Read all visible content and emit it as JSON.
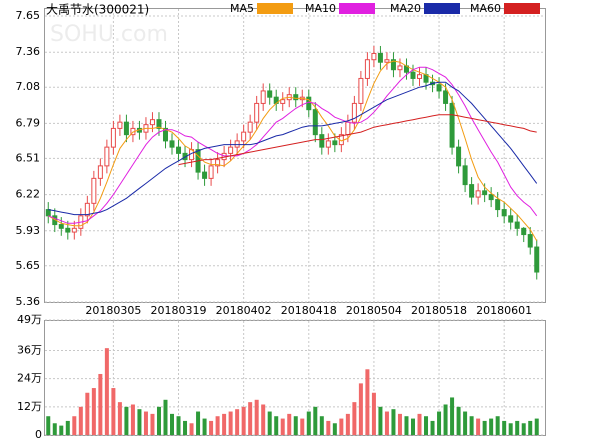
{
  "chart_data": {
    "type": "candlestick",
    "title": "大禹节水(300021)",
    "watermark": "SOHU.com",
    "up_color": "#e84a4a",
    "down_color": "#2e9a3a",
    "grid": true,
    "categories": [
      null,
      null,
      null,
      null,
      null,
      null,
      null,
      null,
      null,
      null,
      "20180305",
      null,
      null,
      null,
      null,
      null,
      null,
      null,
      null,
      null,
      "20180319",
      null,
      null,
      null,
      null,
      null,
      null,
      null,
      null,
      null,
      "20180402",
      null,
      null,
      null,
      null,
      null,
      null,
      null,
      null,
      null,
      "20180418",
      null,
      null,
      null,
      null,
      null,
      null,
      null,
      null,
      null,
      "20180504",
      null,
      null,
      null,
      null,
      null,
      null,
      null,
      null,
      null,
      "20180518",
      null,
      null,
      null,
      null,
      null,
      null,
      null,
      null,
      null,
      "20180601",
      null,
      null,
      null,
      null,
      null
    ],
    "open": [
      6.1,
      6.05,
      5.98,
      5.95,
      5.92,
      5.95,
      6.05,
      6.15,
      6.35,
      6.45,
      6.6,
      6.75,
      6.8,
      6.7,
      6.75,
      6.72,
      6.78,
      6.82,
      6.75,
      6.65,
      6.6,
      6.55,
      6.5,
      6.58,
      6.4,
      6.35,
      6.45,
      6.5,
      6.55,
      6.6,
      6.65,
      6.72,
      6.8,
      6.95,
      7.05,
      7.0,
      6.95,
      6.98,
      7.02,
      6.98,
      7.0,
      6.9,
      6.7,
      6.6,
      6.65,
      6.62,
      6.7,
      6.8,
      6.95,
      7.15,
      7.3,
      7.35,
      7.28,
      7.3,
      7.22,
      7.25,
      7.2,
      7.15,
      7.18,
      7.12,
      7.1,
      7.05,
      6.95,
      6.6,
      6.45,
      6.3,
      6.2,
      6.25,
      6.22,
      6.18,
      6.1,
      6.05,
      6.0,
      5.95,
      5.9,
      5.8
    ],
    "high": [
      6.16,
      6.11,
      6.04,
      6.01,
      6.01,
      6.11,
      6.21,
      6.41,
      6.51,
      6.66,
      6.81,
      6.86,
      6.86,
      6.81,
      6.81,
      6.84,
      6.88,
      6.88,
      6.81,
      6.71,
      6.66,
      6.61,
      6.64,
      6.64,
      6.46,
      6.51,
      6.56,
      6.61,
      6.66,
      6.71,
      6.78,
      6.86,
      7.01,
      7.11,
      7.11,
      7.06,
      7.04,
      7.08,
      7.08,
      7.06,
      7.06,
      6.96,
      6.76,
      6.71,
      6.71,
      6.76,
      6.86,
      7.01,
      7.21,
      7.36,
      7.41,
      7.41,
      7.36,
      7.36,
      7.31,
      7.31,
      7.26,
      7.24,
      7.24,
      7.18,
      7.16,
      7.11,
      7.01,
      6.66,
      6.51,
      6.36,
      6.31,
      6.31,
      6.28,
      6.24,
      6.16,
      6.11,
      6.06,
      5.96,
      5.96,
      5.86
    ],
    "low": [
      5.99,
      5.92,
      5.89,
      5.86,
      5.86,
      5.89,
      5.99,
      6.09,
      6.29,
      6.39,
      6.54,
      6.69,
      6.64,
      6.64,
      6.66,
      6.66,
      6.72,
      6.69,
      6.59,
      6.54,
      6.49,
      6.44,
      6.44,
      6.34,
      6.29,
      6.29,
      6.39,
      6.44,
      6.49,
      6.54,
      6.59,
      6.66,
      6.74,
      6.89,
      6.94,
      6.89,
      6.89,
      6.92,
      6.92,
      6.92,
      6.84,
      6.64,
      6.54,
      6.54,
      6.56,
      6.56,
      6.64,
      6.74,
      6.89,
      7.09,
      7.24,
      7.22,
      7.22,
      7.16,
      7.16,
      7.14,
      7.09,
      7.09,
      7.06,
      7.04,
      6.99,
      6.89,
      6.54,
      6.39,
      6.24,
      6.14,
      6.14,
      6.16,
      6.12,
      6.04,
      5.99,
      5.94,
      5.89,
      5.84,
      5.74,
      5.54
    ],
    "close": [
      6.05,
      5.98,
      5.95,
      5.92,
      5.95,
      6.05,
      6.15,
      6.35,
      6.45,
      6.6,
      6.75,
      6.8,
      6.7,
      6.75,
      6.72,
      6.78,
      6.82,
      6.75,
      6.65,
      6.6,
      6.55,
      6.5,
      6.58,
      6.4,
      6.35,
      6.45,
      6.5,
      6.55,
      6.6,
      6.65,
      6.72,
      6.8,
      6.95,
      7.05,
      7.0,
      6.95,
      6.98,
      7.02,
      6.98,
      7.0,
      6.9,
      6.7,
      6.6,
      6.65,
      6.62,
      6.7,
      6.8,
      6.95,
      7.15,
      7.3,
      7.35,
      7.28,
      7.3,
      7.22,
      7.25,
      7.2,
      7.15,
      7.18,
      7.12,
      7.1,
      7.05,
      6.95,
      6.6,
      6.45,
      6.3,
      6.2,
      6.25,
      6.22,
      6.18,
      6.1,
      6.05,
      6.0,
      5.95,
      5.9,
      5.8,
      5.6
    ],
    "volume": [
      8,
      5,
      4,
      6,
      8,
      12,
      18,
      20,
      26,
      37,
      20,
      14,
      12,
      13,
      11,
      10,
      9,
      12,
      15,
      9,
      8,
      6,
      5,
      10,
      7,
      6,
      8,
      9,
      10,
      11,
      12,
      14,
      15,
      13,
      10,
      8,
      7,
      9,
      8,
      7,
      10,
      12,
      8,
      6,
      5,
      7,
      9,
      14,
      22,
      28,
      18,
      12,
      10,
      11,
      9,
      8,
      7,
      9,
      8,
      6,
      10,
      13,
      16,
      12,
      10,
      8,
      7,
      6,
      7,
      8,
      6,
      5,
      6,
      5,
      6,
      7
    ],
    "series": [
      {
        "name": "MA5",
        "color": "#f39c12",
        "values": [
          6.05,
          6.02,
          5.99,
          5.98,
          5.97,
          5.97,
          6.0,
          6.08,
          6.19,
          6.32,
          6.46,
          6.59,
          6.66,
          6.72,
          6.74,
          6.75,
          6.75,
          6.76,
          6.74,
          6.72,
          6.67,
          6.61,
          6.58,
          6.53,
          6.48,
          6.46,
          6.46,
          6.45,
          6.49,
          6.55,
          6.61,
          6.66,
          6.74,
          6.83,
          6.9,
          6.95,
          6.99,
          7.0,
          6.99,
          6.99,
          6.98,
          6.92,
          6.84,
          6.77,
          6.69,
          6.65,
          6.67,
          6.74,
          6.84,
          6.98,
          7.11,
          7.21,
          7.27,
          7.29,
          7.28,
          7.25,
          7.22,
          7.2,
          7.18,
          7.15,
          7.12,
          7.08,
          6.98,
          6.83,
          6.67,
          6.5,
          6.36,
          6.28,
          6.23,
          6.19,
          6.16,
          6.11,
          6.06,
          6.0,
          5.94,
          5.85
        ]
      },
      {
        "name": "MA10",
        "color": "#e020e0",
        "values": [
          6.05,
          6.03,
          6.01,
          5.99,
          5.99,
          6.0,
          6.01,
          6.05,
          6.09,
          6.15,
          6.22,
          6.3,
          6.38,
          6.46,
          6.54,
          6.62,
          6.68,
          6.72,
          6.74,
          6.74,
          6.72,
          6.69,
          6.68,
          6.64,
          6.61,
          6.58,
          6.55,
          6.53,
          6.53,
          6.53,
          6.55,
          6.58,
          6.62,
          6.68,
          6.74,
          6.8,
          6.83,
          6.87,
          6.91,
          6.94,
          6.96,
          6.95,
          6.91,
          6.88,
          6.84,
          6.82,
          6.8,
          6.79,
          6.8,
          6.83,
          6.88,
          6.94,
          7.01,
          7.07,
          7.13,
          7.18,
          7.22,
          7.24,
          7.24,
          7.22,
          7.19,
          7.16,
          7.1,
          7.02,
          6.93,
          6.83,
          6.74,
          6.65,
          6.56,
          6.48,
          6.38,
          6.28,
          6.21,
          6.16,
          6.12,
          6.05
        ]
      },
      {
        "name": "MA20",
        "color": "#1a2aa8",
        "values": [
          6.1,
          6.09,
          6.08,
          6.07,
          6.06,
          6.06,
          6.06,
          6.07,
          6.08,
          6.1,
          6.13,
          6.16,
          6.19,
          6.23,
          6.27,
          6.31,
          6.35,
          6.39,
          6.43,
          6.46,
          6.49,
          6.52,
          6.55,
          6.57,
          6.59,
          6.6,
          6.61,
          6.62,
          6.62,
          6.62,
          6.62,
          6.62,
          6.63,
          6.65,
          6.67,
          6.69,
          6.7,
          6.72,
          6.74,
          6.76,
          6.77,
          6.77,
          6.77,
          6.78,
          6.79,
          6.8,
          6.81,
          6.83,
          6.86,
          6.89,
          6.92,
          6.95,
          6.98,
          7.0,
          7.02,
          7.04,
          7.06,
          7.08,
          7.09,
          7.11,
          7.12,
          7.12,
          7.08,
          7.05,
          7.0,
          6.95,
          6.89,
          6.83,
          6.77,
          6.71,
          6.65,
          6.59,
          6.52,
          6.45,
          6.38,
          6.31
        ]
      },
      {
        "name": "MA60",
        "color": "#d42020",
        "values": [
          null,
          null,
          null,
          null,
          null,
          null,
          null,
          null,
          null,
          null,
          null,
          null,
          null,
          null,
          null,
          null,
          null,
          null,
          null,
          null,
          6.46,
          6.47,
          6.48,
          6.49,
          6.5,
          6.5,
          6.51,
          6.52,
          6.53,
          6.54,
          6.55,
          6.56,
          6.57,
          6.58,
          6.59,
          6.6,
          6.61,
          6.62,
          6.63,
          6.64,
          6.65,
          6.66,
          6.66,
          6.67,
          6.68,
          6.69,
          6.7,
          6.71,
          6.72,
          6.74,
          6.76,
          6.77,
          6.78,
          6.79,
          6.8,
          6.81,
          6.82,
          6.83,
          6.84,
          6.85,
          6.86,
          6.86,
          6.86,
          6.85,
          6.84,
          6.83,
          6.82,
          6.81,
          6.8,
          6.79,
          6.78,
          6.77,
          6.76,
          6.75,
          6.73,
          6.72
        ]
      }
    ],
    "ylim": [
      5.36,
      7.65
    ],
    "yticks": [
      5.36,
      5.65,
      5.93,
      6.22,
      6.51,
      6.79,
      7.08,
      7.36,
      7.65
    ],
    "y2lim": [
      0,
      49
    ],
    "y2ticks": [
      0,
      {
        "value": 12,
        "label": "12万"
      },
      {
        "value": 24,
        "label": "24万"
      },
      {
        "value": 36,
        "label": "36万"
      },
      {
        "value": 49,
        "label": "49万"
      }
    ]
  }
}
